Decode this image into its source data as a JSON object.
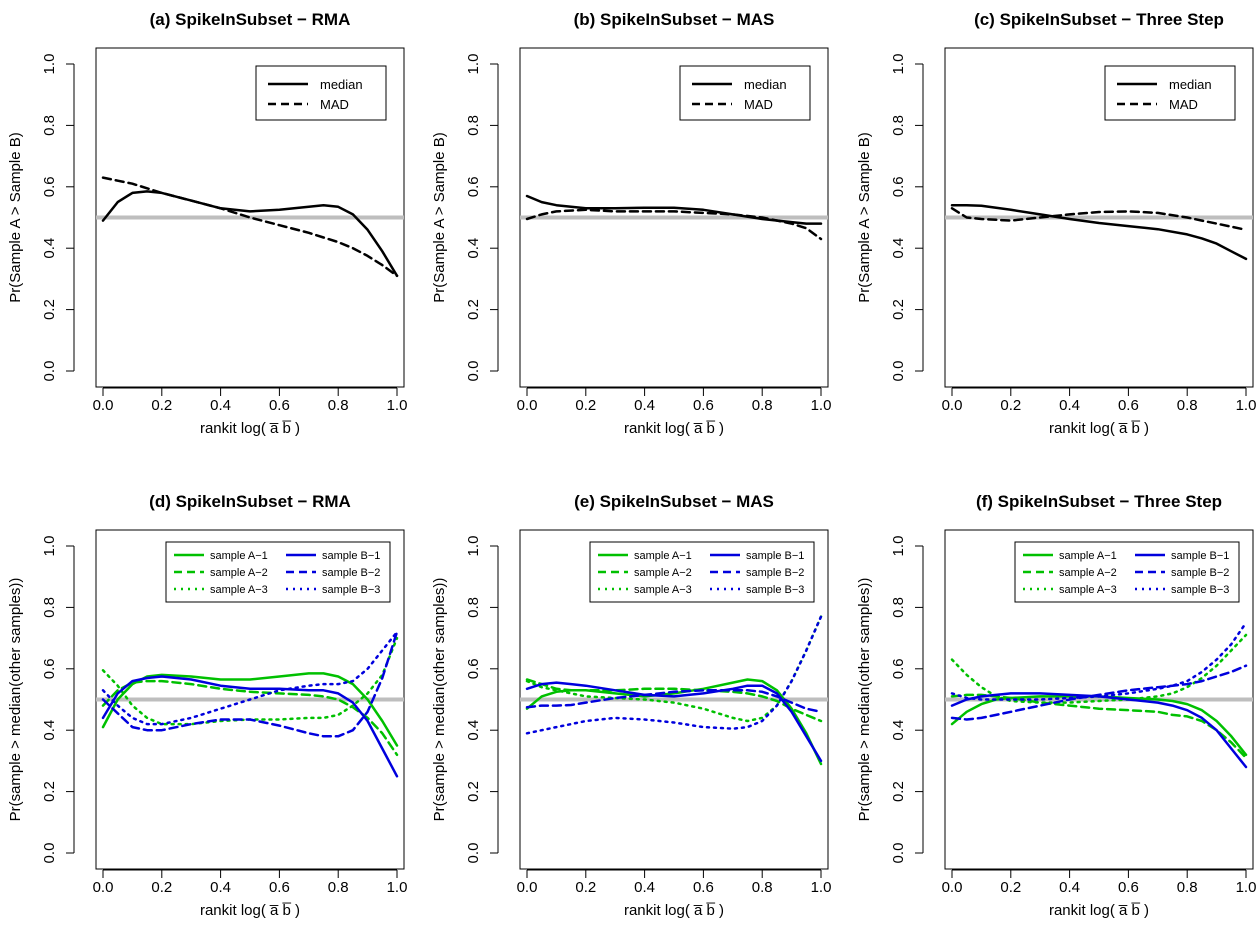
{
  "chart_data": [
    {
      "type": "line",
      "title": "(a) SpikeInSubset − RMA",
      "xlabel": "rankit log( a̅ b̅ )",
      "ylabel": "Pr(Sample A > Sample B)",
      "xlim": [
        0,
        1
      ],
      "ylim": [
        0,
        1
      ],
      "xticks": [
        "0.0",
        "0.2",
        "0.4",
        "0.6",
        "0.8",
        "1.0"
      ],
      "yticks": [
        "0.0",
        "0.2",
        "0.4",
        "0.6",
        "0.8",
        "1.0"
      ],
      "reference_line": 0.5,
      "legend_position": "top-right",
      "x": [
        0,
        0.05,
        0.1,
        0.15,
        0.2,
        0.3,
        0.4,
        0.5,
        0.6,
        0.7,
        0.75,
        0.8,
        0.85,
        0.9,
        0.95,
        1.0
      ],
      "series": [
        {
          "name": "median",
          "color": "#000000",
          "dash": "solid",
          "values": [
            0.49,
            0.55,
            0.58,
            0.585,
            0.58,
            0.555,
            0.53,
            0.52,
            0.525,
            0.535,
            0.54,
            0.535,
            0.51,
            0.46,
            0.39,
            0.31
          ]
        },
        {
          "name": "MAD",
          "color": "#000000",
          "dash": "dashed",
          "values": [
            0.63,
            0.62,
            0.61,
            0.595,
            0.58,
            0.555,
            0.53,
            0.5,
            0.475,
            0.45,
            0.435,
            0.42,
            0.4,
            0.375,
            0.345,
            0.31
          ]
        }
      ]
    },
    {
      "type": "line",
      "title": "(b) SpikeInSubset − MAS",
      "xlabel": "rankit log( a̅ b̅ )",
      "ylabel": "Pr(Sample A > Sample B)",
      "xlim": [
        0,
        1
      ],
      "ylim": [
        0,
        1
      ],
      "xticks": [
        "0.0",
        "0.2",
        "0.4",
        "0.6",
        "0.8",
        "1.0"
      ],
      "yticks": [
        "0.0",
        "0.2",
        "0.4",
        "0.6",
        "0.8",
        "1.0"
      ],
      "reference_line": 0.5,
      "legend_position": "top-right",
      "x": [
        0,
        0.05,
        0.1,
        0.2,
        0.3,
        0.4,
        0.5,
        0.6,
        0.7,
        0.8,
        0.9,
        0.95,
        1.0
      ],
      "series": [
        {
          "name": "median",
          "color": "#000000",
          "dash": "solid",
          "values": [
            0.57,
            0.55,
            0.54,
            0.53,
            0.53,
            0.532,
            0.532,
            0.525,
            0.51,
            0.495,
            0.485,
            0.48,
            0.48
          ]
        },
        {
          "name": "MAD",
          "color": "#000000",
          "dash": "dashed",
          "values": [
            0.495,
            0.51,
            0.52,
            0.525,
            0.52,
            0.52,
            0.52,
            0.515,
            0.51,
            0.5,
            0.48,
            0.465,
            0.43
          ]
        }
      ]
    },
    {
      "type": "line",
      "title": "(c) SpikeInSubset − Three Step",
      "xlabel": "rankit log( a̅ b̅ )",
      "ylabel": "Pr(Sample A > Sample B)",
      "xlim": [
        0,
        1
      ],
      "ylim": [
        0,
        1
      ],
      "xticks": [
        "0.0",
        "0.2",
        "0.4",
        "0.6",
        "0.8",
        "1.0"
      ],
      "yticks": [
        "0.0",
        "0.2",
        "0.4",
        "0.6",
        "0.8",
        "1.0"
      ],
      "reference_line": 0.5,
      "legend_position": "top-right",
      "x": [
        0,
        0.05,
        0.1,
        0.2,
        0.3,
        0.4,
        0.5,
        0.6,
        0.7,
        0.8,
        0.85,
        0.9,
        0.95,
        1.0
      ],
      "series": [
        {
          "name": "median",
          "color": "#000000",
          "dash": "solid",
          "values": [
            0.54,
            0.54,
            0.538,
            0.525,
            0.51,
            0.495,
            0.482,
            0.472,
            0.462,
            0.445,
            0.432,
            0.415,
            0.39,
            0.365
          ]
        },
        {
          "name": "MAD",
          "color": "#000000",
          "dash": "dashed",
          "values": [
            0.53,
            0.5,
            0.495,
            0.49,
            0.5,
            0.51,
            0.518,
            0.52,
            0.515,
            0.5,
            0.49,
            0.48,
            0.47,
            0.46
          ]
        }
      ]
    },
    {
      "type": "line",
      "title": "(d) SpikeInSubset − RMA",
      "xlabel": "rankit log( a̅ b̅ )",
      "ylabel": "Pr(sample > median(other samples))",
      "xlim": [
        0,
        1
      ],
      "ylim": [
        0,
        1
      ],
      "xticks": [
        "0.0",
        "0.2",
        "0.4",
        "0.6",
        "0.8",
        "1.0"
      ],
      "yticks": [
        "0.0",
        "0.2",
        "0.4",
        "0.6",
        "0.8",
        "1.0"
      ],
      "reference_line": 0.5,
      "legend_position": "top-right",
      "x": [
        0,
        0.05,
        0.1,
        0.15,
        0.2,
        0.3,
        0.4,
        0.5,
        0.6,
        0.7,
        0.75,
        0.8,
        0.85,
        0.9,
        0.95,
        1.0
      ],
      "series": [
        {
          "name": "sample A−1",
          "color": "#00c000",
          "dash": "solid",
          "values": [
            0.41,
            0.5,
            0.55,
            0.575,
            0.58,
            0.575,
            0.565,
            0.565,
            0.575,
            0.585,
            0.585,
            0.575,
            0.55,
            0.5,
            0.43,
            0.35
          ]
        },
        {
          "name": "sample A−2",
          "color": "#00c000",
          "dash": "dashed",
          "values": [
            0.48,
            0.53,
            0.555,
            0.56,
            0.56,
            0.55,
            0.535,
            0.525,
            0.52,
            0.515,
            0.51,
            0.5,
            0.475,
            0.44,
            0.39,
            0.32
          ]
        },
        {
          "name": "sample A−3",
          "color": "#00c000",
          "dash": "dotted",
          "values": [
            0.595,
            0.545,
            0.48,
            0.44,
            0.42,
            0.42,
            0.43,
            0.435,
            0.435,
            0.44,
            0.44,
            0.45,
            0.48,
            0.52,
            0.58,
            0.7
          ]
        },
        {
          "name": "sample B−1",
          "color": "#0000dd",
          "dash": "solid",
          "values": [
            0.44,
            0.52,
            0.56,
            0.57,
            0.575,
            0.565,
            0.545,
            0.535,
            0.535,
            0.53,
            0.53,
            0.52,
            0.49,
            0.43,
            0.34,
            0.25
          ]
        },
        {
          "name": "sample B−2",
          "color": "#0000dd",
          "dash": "dashed",
          "values": [
            0.5,
            0.455,
            0.41,
            0.4,
            0.4,
            0.42,
            0.435,
            0.435,
            0.415,
            0.39,
            0.38,
            0.38,
            0.4,
            0.46,
            0.57,
            0.72
          ]
        },
        {
          "name": "sample B−3",
          "color": "#0000dd",
          "dash": "dotted",
          "values": [
            0.53,
            0.48,
            0.44,
            0.42,
            0.42,
            0.44,
            0.47,
            0.5,
            0.53,
            0.545,
            0.55,
            0.55,
            0.56,
            0.6,
            0.66,
            0.72
          ]
        }
      ]
    },
    {
      "type": "line",
      "title": "(e) SpikeInSubset − MAS",
      "xlabel": "rankit log( a̅ b̅ )",
      "ylabel": "Pr(sample > median(other samples))",
      "xlim": [
        0,
        1
      ],
      "ylim": [
        0,
        1
      ],
      "xticks": [
        "0.0",
        "0.2",
        "0.4",
        "0.6",
        "0.8",
        "1.0"
      ],
      "yticks": [
        "0.0",
        "0.2",
        "0.4",
        "0.6",
        "0.8",
        "1.0"
      ],
      "reference_line": 0.5,
      "legend_position": "top-right",
      "x": [
        0,
        0.05,
        0.1,
        0.15,
        0.2,
        0.3,
        0.4,
        0.5,
        0.6,
        0.7,
        0.75,
        0.8,
        0.85,
        0.9,
        0.95,
        1.0
      ],
      "series": [
        {
          "name": "sample A−1",
          "color": "#00c000",
          "dash": "solid",
          "values": [
            0.47,
            0.51,
            0.525,
            0.53,
            0.53,
            0.52,
            0.51,
            0.52,
            0.535,
            0.555,
            0.565,
            0.56,
            0.53,
            0.47,
            0.39,
            0.29
          ]
        },
        {
          "name": "sample A−2",
          "color": "#00c000",
          "dash": "dashed",
          "values": [
            0.565,
            0.55,
            0.535,
            0.53,
            0.53,
            0.53,
            0.535,
            0.535,
            0.53,
            0.525,
            0.52,
            0.51,
            0.495,
            0.47,
            0.45,
            0.43
          ]
        },
        {
          "name": "sample A−3",
          "color": "#00c000",
          "dash": "dotted",
          "values": [
            0.56,
            0.54,
            0.53,
            0.52,
            0.51,
            0.505,
            0.5,
            0.49,
            0.47,
            0.44,
            0.43,
            0.44,
            0.48,
            0.56,
            0.66,
            0.77
          ]
        },
        {
          "name": "sample B−1",
          "color": "#0000dd",
          "dash": "solid",
          "values": [
            0.535,
            0.55,
            0.555,
            0.55,
            0.545,
            0.53,
            0.515,
            0.51,
            0.52,
            0.535,
            0.545,
            0.545,
            0.52,
            0.46,
            0.38,
            0.3
          ]
        },
        {
          "name": "sample B−2",
          "color": "#0000dd",
          "dash": "dashed",
          "values": [
            0.475,
            0.48,
            0.48,
            0.482,
            0.49,
            0.505,
            0.515,
            0.525,
            0.53,
            0.53,
            0.53,
            0.525,
            0.51,
            0.49,
            0.47,
            0.46
          ]
        },
        {
          "name": "sample B−3",
          "color": "#0000dd",
          "dash": "dotted",
          "values": [
            0.39,
            0.4,
            0.41,
            0.42,
            0.43,
            0.44,
            0.435,
            0.425,
            0.41,
            0.405,
            0.41,
            0.43,
            0.48,
            0.56,
            0.66,
            0.77
          ]
        }
      ]
    },
    {
      "type": "line",
      "title": "(f) SpikeInSubset − Three Step",
      "xlabel": "rankit log( a̅ b̅ )",
      "ylabel": "Pr(sample > median(other samples))",
      "xlim": [
        0,
        1
      ],
      "ylim": [
        0,
        1
      ],
      "xticks": [
        "0.0",
        "0.2",
        "0.4",
        "0.6",
        "0.8",
        "1.0"
      ],
      "yticks": [
        "0.0",
        "0.2",
        "0.4",
        "0.6",
        "0.8",
        "1.0"
      ],
      "reference_line": 0.5,
      "legend_position": "top-right",
      "x": [
        0,
        0.05,
        0.1,
        0.15,
        0.2,
        0.3,
        0.4,
        0.5,
        0.6,
        0.7,
        0.75,
        0.8,
        0.85,
        0.9,
        0.95,
        1.0
      ],
      "series": [
        {
          "name": "sample A−1",
          "color": "#00c000",
          "dash": "solid",
          "values": [
            0.42,
            0.46,
            0.485,
            0.5,
            0.505,
            0.51,
            0.51,
            0.51,
            0.505,
            0.5,
            0.495,
            0.485,
            0.465,
            0.43,
            0.38,
            0.32
          ]
        },
        {
          "name": "sample A−2",
          "color": "#00c000",
          "dash": "dashed",
          "values": [
            0.51,
            0.515,
            0.515,
            0.51,
            0.505,
            0.49,
            0.48,
            0.47,
            0.465,
            0.46,
            0.45,
            0.445,
            0.43,
            0.4,
            0.36,
            0.31
          ]
        },
        {
          "name": "sample A−3",
          "color": "#00c000",
          "dash": "dotted",
          "values": [
            0.63,
            0.58,
            0.54,
            0.51,
            0.495,
            0.49,
            0.49,
            0.495,
            0.5,
            0.51,
            0.52,
            0.54,
            0.57,
            0.61,
            0.66,
            0.71
          ]
        },
        {
          "name": "sample B−1",
          "color": "#0000dd",
          "dash": "solid",
          "values": [
            0.48,
            0.5,
            0.51,
            0.515,
            0.52,
            0.52,
            0.515,
            0.51,
            0.5,
            0.49,
            0.48,
            0.465,
            0.44,
            0.4,
            0.34,
            0.28
          ]
        },
        {
          "name": "sample B−2",
          "color": "#0000dd",
          "dash": "dashed",
          "values": [
            0.44,
            0.435,
            0.44,
            0.45,
            0.46,
            0.48,
            0.5,
            0.515,
            0.53,
            0.54,
            0.545,
            0.55,
            0.56,
            0.575,
            0.59,
            0.61
          ]
        },
        {
          "name": "sample B−3",
          "color": "#0000dd",
          "dash": "dotted",
          "values": [
            0.52,
            0.505,
            0.5,
            0.5,
            0.5,
            0.5,
            0.505,
            0.51,
            0.52,
            0.535,
            0.545,
            0.56,
            0.59,
            0.63,
            0.68,
            0.75
          ]
        }
      ]
    }
  ]
}
